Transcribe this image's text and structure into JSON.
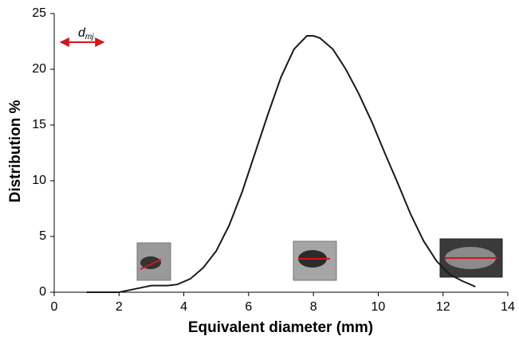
{
  "chart_data": {
    "type": "line",
    "x_label": "Equivalent diameter (mm)",
    "y_label": "Distribution %",
    "annotation": {
      "text": "d",
      "subscript": "mj"
    },
    "x": [
      1,
      1.5,
      2,
      2.5,
      3,
      3.5,
      3.8,
      4.2,
      4.6,
      5,
      5.4,
      5.8,
      6.2,
      6.6,
      7,
      7.4,
      7.8,
      8,
      8.2,
      8.6,
      9,
      9.4,
      9.8,
      10.2,
      10.6,
      11,
      11.4,
      11.8,
      12.2,
      12.6,
      13
    ],
    "series": [
      {
        "color": "#1a1a1a",
        "values": [
          0,
          0,
          0,
          0.3,
          0.6,
          0.6,
          0.7,
          1.2,
          2.2,
          3.7,
          6,
          9,
          12.5,
          16,
          19.3,
          21.8,
          23,
          23,
          22.8,
          21.8,
          20,
          17.8,
          15.3,
          12.5,
          9.8,
          7,
          4.6,
          2.8,
          1.6,
          1,
          0.5
        ]
      }
    ],
    "xlim": [
      0,
      14
    ],
    "xticks": [
      0,
      2,
      4,
      6,
      8,
      10,
      12,
      14
    ],
    "ylim": [
      0,
      25
    ],
    "yticks": [
      0,
      5,
      10,
      15,
      20,
      25
    ],
    "annotation_color": "#d4141c"
  }
}
